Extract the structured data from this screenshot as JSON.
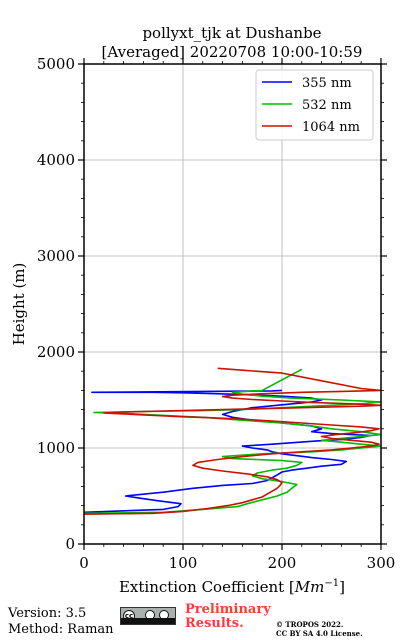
{
  "chart_data": {
    "type": "line",
    "title_line1": "pollyxt_tjk at Dushanbe",
    "title_line2": "[Averaged] 20220708 10:00-10:59",
    "xlabel_text": "Extinction Coefficient [",
    "xlabel_unit_base": "Mm",
    "xlabel_unit_exp": "−1",
    "xlabel_close": "]",
    "ylabel": "Height (m)",
    "xlim": [
      0,
      300
    ],
    "ylim": [
      0,
      5000
    ],
    "xticks": [
      "0",
      "100",
      "200",
      "300"
    ],
    "yticks": [
      "0",
      "1000",
      "2000",
      "3000",
      "4000",
      "5000"
    ],
    "grid": true,
    "legend_position": "upper right",
    "series": [
      {
        "name": "355 nm",
        "color": "#0000ff",
        "x": [
          0,
          80,
          95,
          98,
          75,
          55,
          42,
          80,
          110,
          140,
          170,
          185,
          190,
          195,
          200,
          210,
          225,
          240,
          260,
          265,
          250,
          230,
          215,
          200,
          190,
          185,
          170,
          160,
          190,
          230,
          260,
          280,
          290,
          250,
          230,
          240,
          230,
          200,
          170,
          150,
          140,
          150,
          170,
          200,
          230,
          240,
          230,
          200,
          150,
          120,
          100,
          70,
          40,
          8,
          120,
          190,
          200
        ],
        "y": [
          330,
          360,
          390,
          420,
          450,
          480,
          500,
          540,
          580,
          610,
          630,
          660,
          690,
          720,
          750,
          770,
          790,
          810,
          830,
          860,
          880,
          900,
          920,
          940,
          960,
          980,
          1000,
          1020,
          1040,
          1070,
          1090,
          1110,
          1130,
          1150,
          1170,
          1200,
          1230,
          1260,
          1290,
          1320,
          1350,
          1380,
          1420,
          1450,
          1480,
          1500,
          1520,
          1540,
          1560,
          1570,
          1575,
          1580,
          1580,
          1580,
          1590,
          1595,
          1600
        ]
      },
      {
        "name": "532 nm",
        "color": "#00bb00",
        "x": [
          0,
          80,
          120,
          155,
          165,
          180,
          195,
          205,
          210,
          215,
          200,
          180,
          170,
          175,
          190,
          205,
          215,
          220,
          200,
          150,
          140,
          180,
          230,
          260,
          280,
          300,
          280,
          260,
          240,
          260,
          300,
          280,
          250,
          230,
          200,
          160,
          120,
          80,
          40,
          10,
          60,
          120,
          160,
          200,
          240,
          280,
          300,
          260,
          210,
          180,
          160,
          150,
          180,
          220
        ],
        "y": [
          320,
          330,
          360,
          390,
          420,
          460,
          500,
          540,
          580,
          620,
          650,
          680,
          710,
          740,
          770,
          790,
          820,
          850,
          870,
          890,
          910,
          940,
          960,
          980,
          1000,
          1020,
          1040,
          1060,
          1080,
          1100,
          1140,
          1170,
          1200,
          1230,
          1260,
          1290,
          1320,
          1340,
          1360,
          1370,
          1380,
          1390,
          1400,
          1420,
          1440,
          1460,
          1480,
          1500,
          1520,
          1540,
          1560,
          1580,
          1600,
          1820
        ]
      },
      {
        "name": "1064 nm",
        "color": "#cc1100",
        "x": [
          0,
          70,
          100,
          125,
          145,
          160,
          170,
          180,
          185,
          190,
          195,
          198,
          200,
          195,
          185,
          165,
          140,
          120,
          110,
          115,
          135,
          160,
          190,
          220,
          250,
          270,
          290,
          298,
          290,
          270,
          250,
          240,
          255,
          275,
          290,
          298,
          280,
          250,
          220,
          190,
          160,
          130,
          100,
          80,
          60,
          40,
          20,
          40,
          80,
          120,
          160,
          200,
          240,
          280,
          300,
          270,
          230,
          200,
          170,
          150,
          140,
          150,
          180,
          220,
          260,
          300,
          280,
          240,
          200,
          160,
          135
        ],
        "y": [
          310,
          320,
          340,
          370,
          400,
          430,
          460,
          490,
          520,
          550,
          580,
          610,
          640,
          670,
          700,
          730,
          760,
          790,
          820,
          850,
          880,
          910,
          940,
          960,
          980,
          1000,
          1020,
          1040,
          1060,
          1080,
          1100,
          1120,
          1140,
          1160,
          1180,
          1200,
          1220,
          1240,
          1260,
          1280,
          1300,
          1315,
          1325,
          1335,
          1345,
          1355,
          1365,
          1375,
          1385,
          1395,
          1405,
          1415,
          1425,
          1435,
          1445,
          1460,
          1475,
          1490,
          1505,
          1520,
          1535,
          1550,
          1565,
          1580,
          1590,
          1600,
          1620,
          1700,
          1780,
          1810,
          1830
        ]
      }
    ]
  },
  "footer": {
    "version": "Version: 3.5",
    "method": "Method: Raman",
    "cc_text": "cc",
    "preliminary_line1": "Preliminary",
    "preliminary_line2": "Results.",
    "copyright_line1": "© TROPOS 2022.",
    "copyright_line2": "CC BY SA 4.0 License."
  }
}
